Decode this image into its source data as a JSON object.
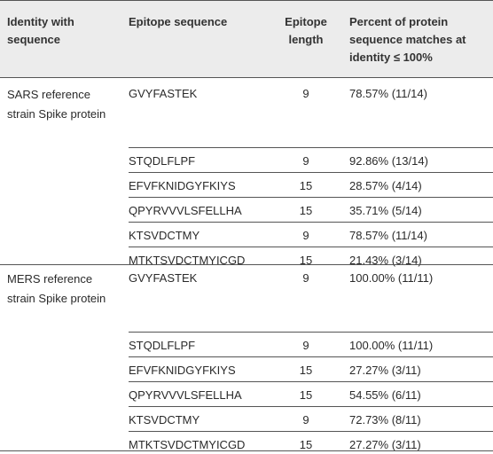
{
  "headers": {
    "identity": "Identity with sequence",
    "epitope": "Epitope sequence",
    "length": "Epitope length",
    "percent": "Percent of protein sequence matches at identity ≤ 100%"
  },
  "groups": [
    {
      "identity": "SARS reference strain Spike protein",
      "rows": [
        {
          "epitope": "GVYFASTEK",
          "length": "9",
          "percent": "78.57% (11/14)"
        },
        {
          "epitope": "STQDLFLPF",
          "length": "9",
          "percent": "92.86% (13/14)"
        },
        {
          "epitope": "EFVFKNIDGYFKIYS",
          "length": "15",
          "percent": "28.57% (4/14)"
        },
        {
          "epitope": "QPYRVVVLSFELLHA",
          "length": "15",
          "percent": "35.71% (5/14)"
        },
        {
          "epitope": "KTSVDCTMY",
          "length": "9",
          "percent": "78.57% (11/14)"
        },
        {
          "epitope": "MTKTSVDCTMYICGD",
          "length": "15",
          "percent": "21.43% (3/14)"
        }
      ]
    },
    {
      "identity": "MERS reference strain Spike protein",
      "rows": [
        {
          "epitope": "GVYFASTEK",
          "length": "9",
          "percent": "100.00% (11/11)"
        },
        {
          "epitope": "STQDLFLPF",
          "length": "9",
          "percent": "100.00% (11/11)"
        },
        {
          "epitope": "EFVFKNIDGYFKIYS",
          "length": "15",
          "percent": "27.27% (3/11)"
        },
        {
          "epitope": "QPYRVVVLSFELLHA",
          "length": "15",
          "percent": "54.55% (6/11)"
        },
        {
          "epitope": "KTSVDCTMY",
          "length": "9",
          "percent": "72.73% (8/11)"
        },
        {
          "epitope": "MTKTSVDCTMYICGD",
          "length": "15",
          "percent": "27.27% (3/11)"
        }
      ]
    }
  ]
}
